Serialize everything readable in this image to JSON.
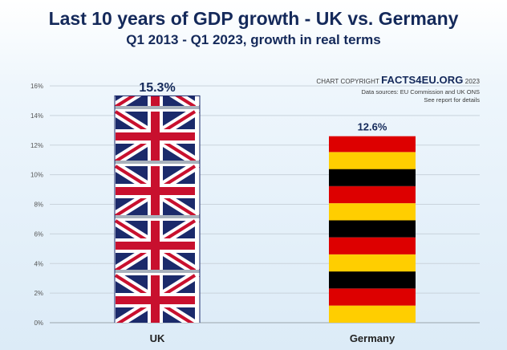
{
  "chart_data": {
    "type": "bar",
    "title": "Last 10 years of GDP growth - UK vs. Germany",
    "subtitle": "Q1 2013 - Q1 2023, growth in real terms",
    "categories": [
      "UK",
      "Germany"
    ],
    "values": [
      15.3,
      12.6
    ],
    "data_labels": [
      "15.3%",
      "12.6%"
    ],
    "ylim": [
      0,
      16
    ],
    "y_ticks": [
      "0%",
      "2%",
      "4%",
      "6%",
      "8%",
      "10%",
      "12%",
      "14%",
      "16%"
    ],
    "grid": true,
    "bar_fills": [
      "uk-flag-pattern",
      "germany-flag-stripes"
    ]
  },
  "credits": {
    "copyright_prefix": "CHART COPYRIGHT",
    "brand": "FACTS4EU.ORG",
    "year": "2023",
    "sources": "Data sources: EU Commission and UK ONS",
    "details": "See report for details"
  },
  "colors": {
    "title": "#14295a",
    "uk_blue": "#1b2a6b",
    "uk_red": "#c8102e",
    "de_black": "#000000",
    "de_red": "#dd0000",
    "de_gold": "#ffce00"
  }
}
